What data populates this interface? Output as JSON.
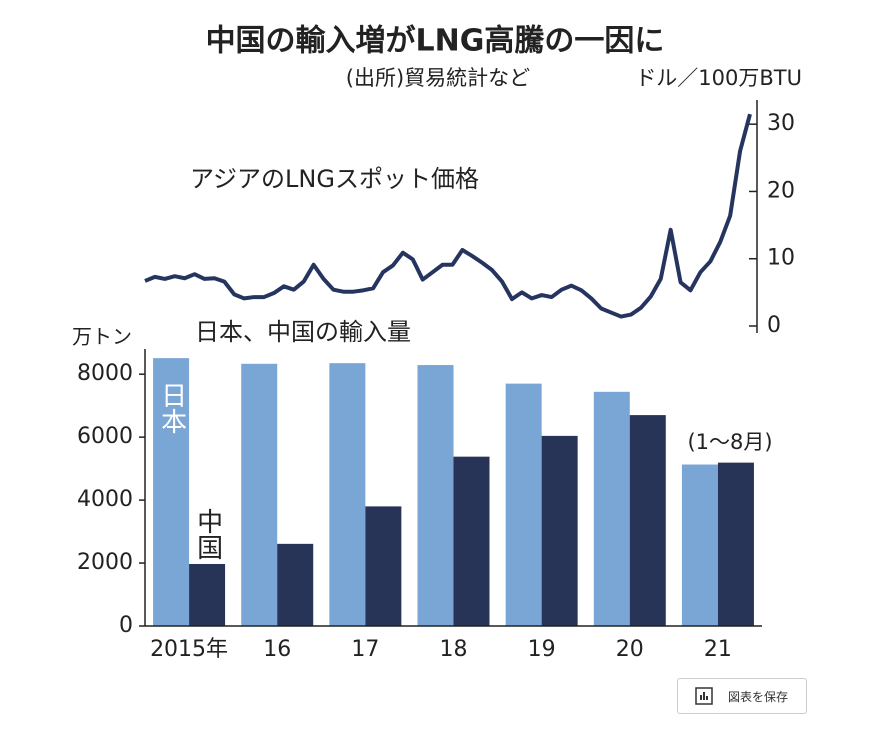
{
  "chart_data": [
    {
      "type": "line",
      "title": "中国の輸入増がLNG高騰の一因に",
      "subtitle": "(出所)貿易統計など",
      "y_label": "ドル／100万BTU",
      "series": [
        {
          "name": "アジアのLNGスポット価格",
          "color": "#253560",
          "values": [
            6.7,
            7.3,
            7.0,
            7.4,
            7.1,
            7.7,
            7.0,
            7.1,
            6.6,
            4.7,
            4.1,
            4.3,
            4.3,
            4.9,
            5.9,
            5.4,
            6.6,
            9.1,
            7.0,
            5.4,
            5.1,
            5.1,
            5.3,
            5.6,
            8.0,
            9.0,
            10.9,
            9.9,
            6.9,
            8.0,
            9.1,
            9.1,
            11.3,
            10.4,
            9.4,
            8.3,
            6.6,
            4.0,
            5.0,
            4.1,
            4.6,
            4.3,
            5.4,
            6.0,
            5.3,
            4.1,
            2.6,
            2.0,
            1.4,
            1.7,
            2.7,
            4.4,
            7.0,
            14.3,
            6.5,
            5.3,
            8.0,
            9.6,
            12.5,
            16.4,
            26.0,
            31.5
          ]
        }
      ],
      "ylim": [
        0,
        33
      ],
      "yticks": [
        0,
        10,
        20,
        30
      ]
    },
    {
      "type": "bar",
      "title": "日本、中国の輸入量",
      "y_label": "万トン",
      "annotation": "(1～8月)",
      "categories": [
        "2015年",
        "16",
        "17",
        "18",
        "19",
        "20",
        "21"
      ],
      "series": [
        {
          "name": "日本",
          "color": "#7aa6d6",
          "values": [
            8510,
            8330,
            8350,
            8290,
            7700,
            7440,
            5130
          ]
        },
        {
          "name": "中国",
          "color": "#283457",
          "values": [
            1970,
            2610,
            3800,
            5380,
            6040,
            6700,
            5190
          ]
        }
      ],
      "ylim": [
        0,
        8800
      ],
      "yticks": [
        0,
        2000,
        4000,
        6000,
        8000
      ]
    }
  ],
  "save_button": "図表を保存"
}
